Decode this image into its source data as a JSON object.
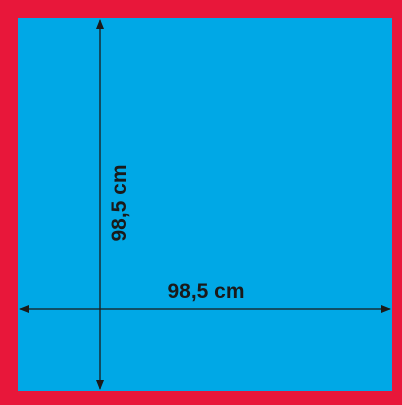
{
  "colors": {
    "frame": "#e8173a",
    "surface": "#00a8e6",
    "dimension_line": "#1a1a1a"
  },
  "dimensions": {
    "vertical_label": "98,5 cm",
    "horizontal_label": "98,5 cm"
  }
}
